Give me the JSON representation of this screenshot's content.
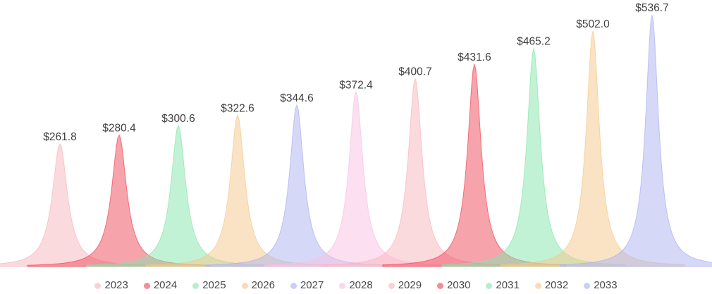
{
  "chart_data": {
    "type": "area",
    "title": "",
    "subtitle": "",
    "categories": [
      "2023",
      "2024",
      "2025",
      "2026",
      "2027",
      "2028",
      "2029",
      "2030",
      "2031",
      "2032",
      "2033"
    ],
    "values": [
      261.8,
      280.4,
      300.6,
      322.6,
      344.6,
      372.4,
      400.7,
      431.6,
      465.2,
      502.0,
      536.7
    ],
    "data_labels": [
      "$261.8",
      "$280.4",
      "$300.6",
      "$322.6",
      "$344.6",
      "$372.4",
      "$400.7",
      "$431.6",
      "$465.2",
      "$502.0",
      "$536.7"
    ],
    "series_colors": [
      "#f7b5bd",
      "#ef4759",
      "#86e6ab",
      "#f5c789",
      "#abb1ef",
      "#f9bfe1",
      "#f7b5bd",
      "#ef4759",
      "#86e6ab",
      "#f5c789",
      "#abb1ef"
    ],
    "value_label_color": "#3f3f3f",
    "legend_text_color": "#4a4a4a",
    "background_color": "#ffffff",
    "xlabel": "",
    "ylabel": "",
    "ylim": [
      0,
      568
    ],
    "grid": false,
    "axes_visible": false,
    "legend_position": "bottom"
  }
}
